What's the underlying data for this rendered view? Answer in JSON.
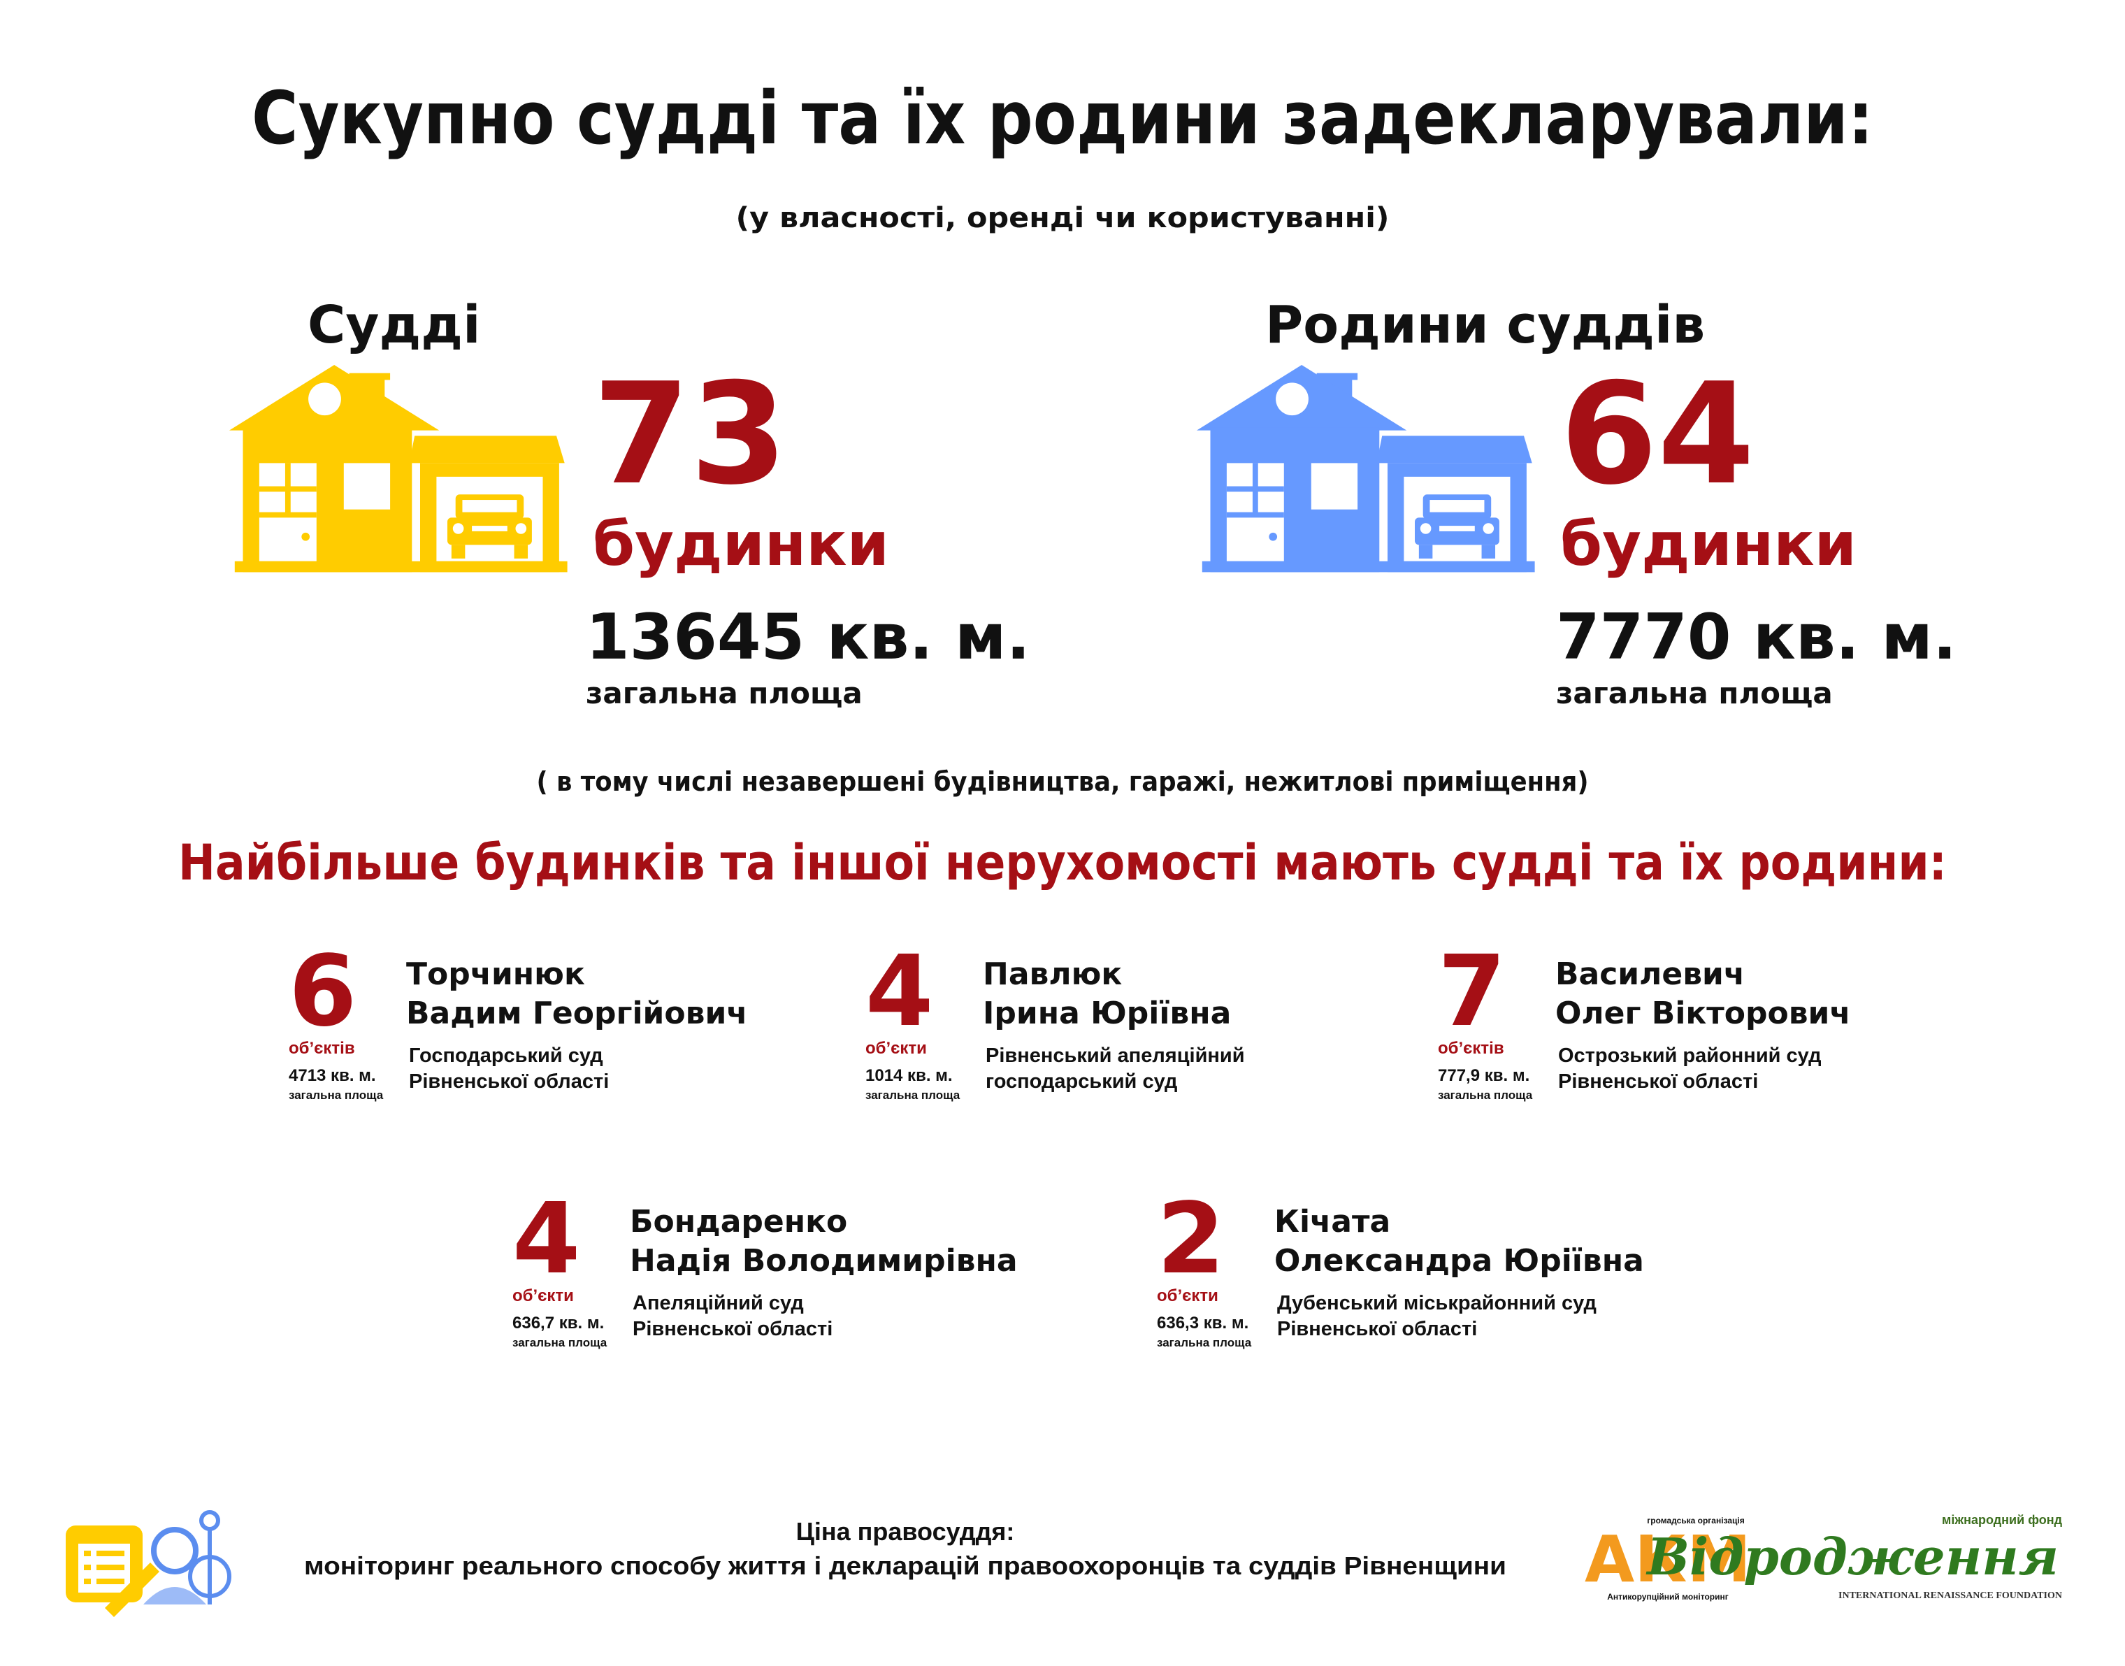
{
  "header": {
    "title": "Сукупно судді та їх родини задекларували:",
    "subtitle": "(у власності, оренді чи користуванні)"
  },
  "summary": [
    {
      "label": "Судді",
      "count": "73",
      "unit": "будинки",
      "area": "13645 кв. м.",
      "area_label": "загальна площа"
    },
    {
      "label": "Родини суддів",
      "count": "64",
      "unit": "будинки",
      "area": "7770 кв. м.",
      "area_label": "загальна площа"
    }
  ],
  "note": "( в тому числі незавершені будівництва, гаражі, нежитлові приміщення)",
  "section_title": "Найбільше будинків та іншої нерухомості мають судді та їх родини:",
  "judges": [
    {
      "count": "6",
      "count_label": "об’єктів",
      "area": "4713 кв. м.",
      "area_label": "загальна площа",
      "name": [
        "Торчинюк",
        "Вадим Георгійович"
      ],
      "court": [
        "Господарський суд",
        "Рівненської області"
      ]
    },
    {
      "count": "4",
      "count_label": "об’єкти",
      "area": "1014 кв. м.",
      "area_label": "загальна площа",
      "name": [
        "Павлюк",
        "Ірина Юріївна"
      ],
      "court": [
        "Рівненський апеляційний",
        "господарський суд"
      ]
    },
    {
      "count": "7",
      "count_label": "об’єктів",
      "area": "777,9 кв. м.",
      "area_label": "загальна площа",
      "name": [
        "Василевич",
        "Олег Вікторович"
      ],
      "court": [
        "Острозький районний суд",
        "Рівненської області"
      ]
    },
    {
      "count": "4",
      "count_label": "об’єкти",
      "area": "636,7 кв. м.",
      "area_label": "загальна площа",
      "name": [
        "Бондаренко",
        "Надія Володимирівна"
      ],
      "court": [
        "Апеляційний суд",
        "Рівненської області"
      ]
    },
    {
      "count": "2",
      "count_label": "об’єкти",
      "area": "636,3 кв. м.",
      "area_label": "загальна площа",
      "name": [
        "Кічата",
        "Олександра Юріївна"
      ],
      "court": [
        "Дубенський міськрайонний суд",
        "Рівненської області"
      ]
    }
  ],
  "footer": {
    "title": "Ціна правосуддя:",
    "subtitle": "моніторинг реального способу життя і декларацій правоохоронців та суддів Рівненщини"
  },
  "logos": {
    "akm_top": "громадська організація",
    "akm": "АКМ",
    "akm_bottom": "Антикорупційний моніторинг",
    "fund_top": "міжнародний фонд",
    "fund": "Відродження",
    "fund_bottom": "INTERNATIONAL RENAISSANCE FOUNDATION"
  }
}
